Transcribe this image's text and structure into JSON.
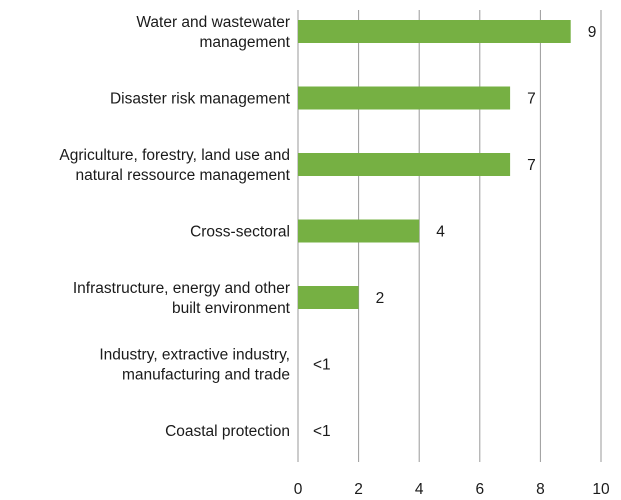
{
  "chart_data": {
    "type": "bar",
    "orientation": "horizontal",
    "title": "",
    "xlabel": "",
    "ylabel": "",
    "xlim": [
      0,
      10
    ],
    "x_ticks": [
      "0",
      "2",
      "4",
      "6",
      "8",
      "10"
    ],
    "grid": "vertical",
    "bar_color": "#76b043",
    "categories": [
      {
        "lines": [
          "Water and wastewater",
          "management"
        ],
        "value": 9,
        "label": "9"
      },
      {
        "lines": [
          "Disaster risk management"
        ],
        "value": 7,
        "label": "7"
      },
      {
        "lines": [
          "Agriculture, forestry, land use and",
          "natural ressource management"
        ],
        "value": 7,
        "label": "7"
      },
      {
        "lines": [
          "Cross-sectoral"
        ],
        "value": 4,
        "label": "4"
      },
      {
        "lines": [
          "Infrastructure, energy and other",
          "built environment"
        ],
        "value": 2,
        "label": "2"
      },
      {
        "lines": [
          "Industry, extractive industry,",
          "manufacturing and trade"
        ],
        "value": 0,
        "label": "<1"
      },
      {
        "lines": [
          "Coastal protection"
        ],
        "value": 0,
        "label": "<1"
      }
    ]
  }
}
